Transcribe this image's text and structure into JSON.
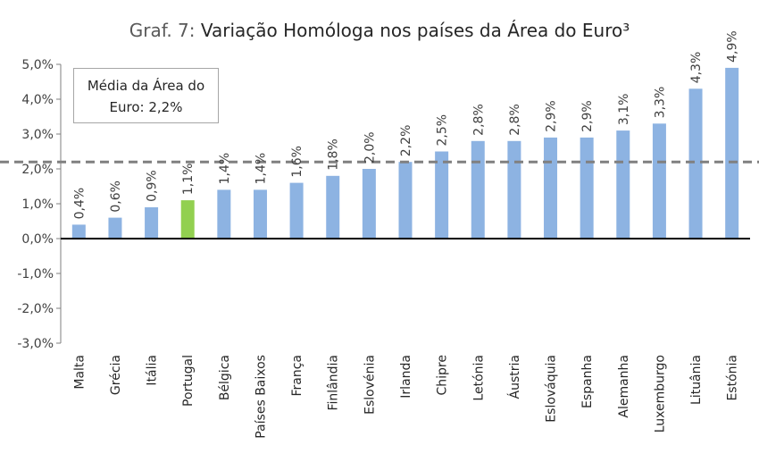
{
  "title": {
    "prefix": "Graf. 7:",
    "main": "Variação Homóloga nos países da Área do Euro³"
  },
  "average_box": {
    "line1": "Média da Área do",
    "line2": "Euro: 2,2%"
  },
  "colors": {
    "bar": "#8db3e2",
    "highlight": "#92d050",
    "average_line": "#808080",
    "axis": "#000000",
    "text": "#404040"
  },
  "chart_data": {
    "type": "bar",
    "categories": [
      "Malta",
      "Grécia",
      "Itália",
      "Portugal",
      "Bélgica",
      "Países Baixos",
      "França",
      "Finlândia",
      "Eslovénia",
      "Irlanda",
      "Chipre",
      "Letónia",
      "Áustria",
      "Eslováquia",
      "Espanha",
      "Alemanha",
      "Luxemburgo",
      "Lituânia",
      "Estónia"
    ],
    "values": [
      0.4,
      0.6,
      0.9,
      1.1,
      1.4,
      1.4,
      1.6,
      1.8,
      2.0,
      2.2,
      2.5,
      2.8,
      2.8,
      2.9,
      2.9,
      3.1,
      3.3,
      4.3,
      4.9
    ],
    "data_labels": [
      "0,4%",
      "0,6%",
      "0,9%",
      "1,1%",
      "1,4%",
      "1,4%",
      "1,6%",
      "1,8%",
      "2,0%",
      "2,2%",
      "2,5%",
      "2,8%",
      "2,8%",
      "2,9%",
      "2,9%",
      "3,1%",
      "3,3%",
      "4,3%",
      "4,9%"
    ],
    "highlight_category": "Portugal",
    "average": 2.2,
    "ylim": [
      -3,
      5
    ],
    "yticks": [
      5,
      4,
      3,
      2,
      1,
      0,
      -1,
      -2,
      -3
    ],
    "ytick_labels": [
      "5,0%",
      "4,0%",
      "3,0%",
      "2,0%",
      "1,0%",
      "0,0%",
      "-1,0%",
      "-2,0%",
      "-3,0%"
    ],
    "grid": false,
    "xlabel": "",
    "ylabel": ""
  }
}
